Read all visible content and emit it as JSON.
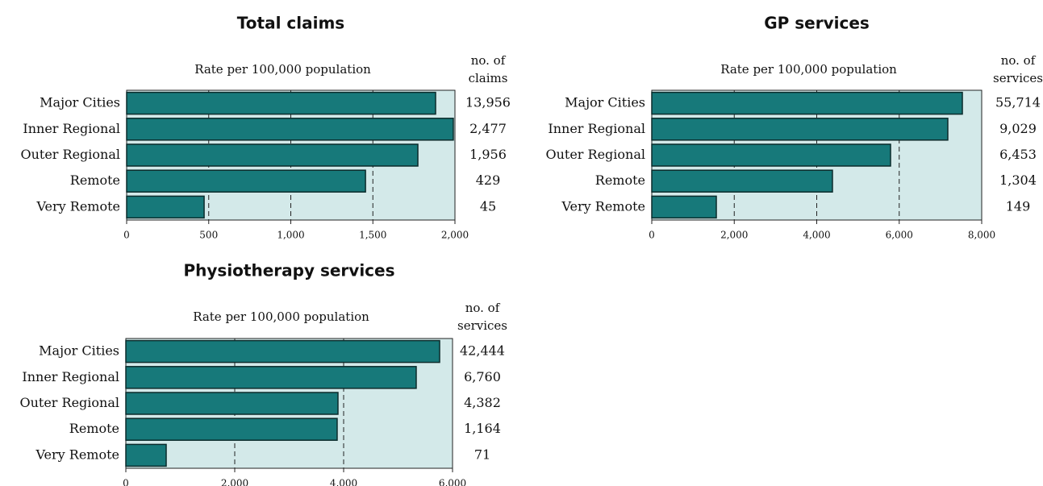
{
  "chart_data": [
    {
      "type": "bar",
      "title": "Total claims",
      "x_label": "Rate per 100,000 population",
      "count_label": [
        "no. of",
        "claims"
      ],
      "categories": [
        "Major Cities",
        "Inner Regional",
        "Outer Regional",
        "Remote",
        "Very Remote"
      ],
      "values": [
        1882,
        1990,
        1774,
        1455,
        472
      ],
      "counts": [
        "13,956",
        "2,477",
        "1,956",
        "429",
        "45"
      ],
      "color": "#17797a",
      "background": "#d3e9e9",
      "xlim": [
        0,
        2000
      ],
      "xticks": [
        0,
        500,
        {
          "value": 1000,
          "label": "1,000"
        },
        {
          "value": 1500,
          "label": "1,500"
        },
        {
          "value": 2000,
          "label": "2,000"
        }
      ],
      "grid": true
    },
    {
      "type": "bar",
      "title": "GP services",
      "x_label": "Rate per 100,000 population",
      "count_label": [
        "no. of",
        "services"
      ],
      "categories": [
        "Major Cities",
        "Inner Regional",
        "Outer Regional",
        "Remote",
        "Very Remote"
      ],
      "values": [
        7531,
        7178,
        5790,
        4381,
        1565
      ],
      "counts": [
        "55,714",
        "9,029",
        "6,453",
        "1,304",
        "149"
      ],
      "color": "#17797a",
      "background": "#d3e9e9",
      "xlim": [
        0,
        8000
      ],
      "xticks": [
        0,
        {
          "value": 2000,
          "label": "2,000"
        },
        {
          "value": 4000,
          "label": "4,000"
        },
        {
          "value": 6000,
          "label": "6,000"
        },
        {
          "value": 8000,
          "label": "8,000"
        }
      ],
      "grid": true
    },
    {
      "type": "bar",
      "title": "Physiotherapy services",
      "x_label": "Rate per 100,000 population",
      "count_label": [
        "no. of",
        "services"
      ],
      "categories": [
        "Major Cities",
        "Inner Regional",
        "Outer Regional",
        "Remote",
        "Very Remote"
      ],
      "values": [
        5763,
        5333,
        3896,
        3881,
        741
      ],
      "counts": [
        "42,444",
        "6,760",
        "4,382",
        "1,164",
        "71"
      ],
      "color": "#17797a",
      "background": "#d3e9e9",
      "xlim": [
        0,
        6000
      ],
      "xticks": [
        0,
        {
          "value": 2000,
          "label": "2,000"
        },
        {
          "value": 4000,
          "label": "4,000"
        },
        {
          "value": 6000,
          "label": "6,000"
        }
      ],
      "grid": true
    }
  ]
}
